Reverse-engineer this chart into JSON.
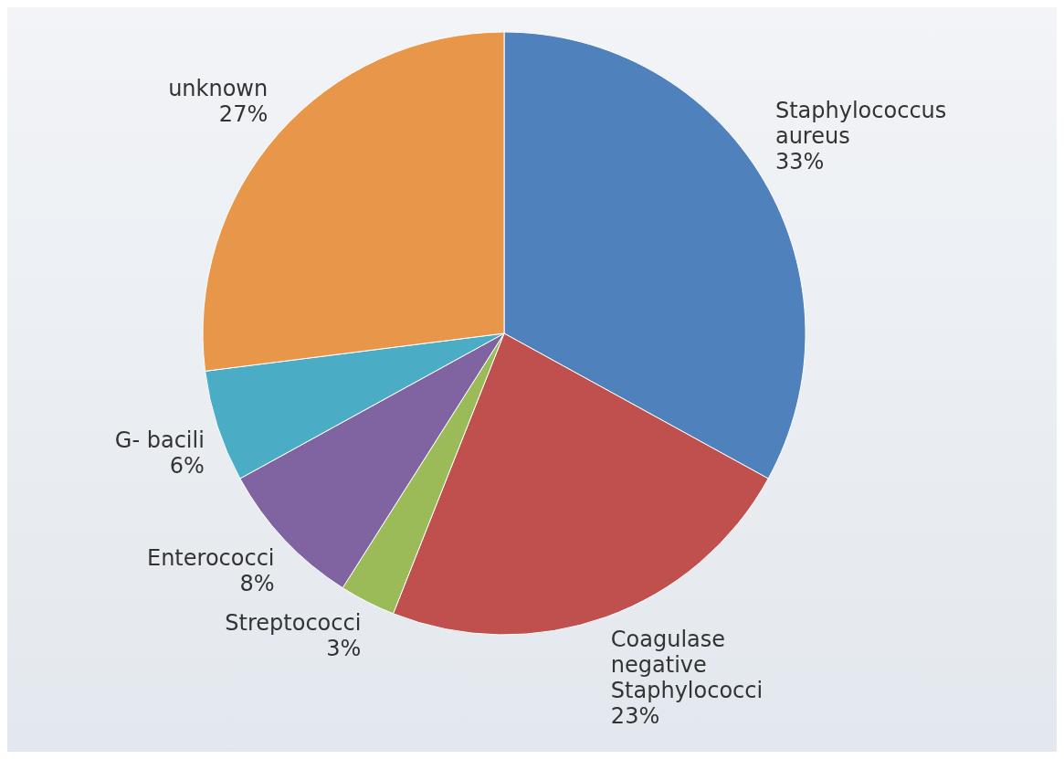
{
  "chart_data": {
    "type": "pie",
    "categories": [
      "Staphylococcus aureus",
      "Coagulase negative Staphylococci",
      "Streptococci",
      "Enterococci",
      "G- bacili",
      "unknown"
    ],
    "values": [
      33,
      23,
      3,
      8,
      6,
      27
    ],
    "value_labels": [
      "33%",
      "23%",
      "3%",
      "8%",
      "6%",
      "27%"
    ],
    "colors": [
      "#4f81bd",
      "#c0504d",
      "#9bbb59",
      "#8064a2",
      "#4bacc6",
      "#e8964a"
    ],
    "legend": false
  }
}
